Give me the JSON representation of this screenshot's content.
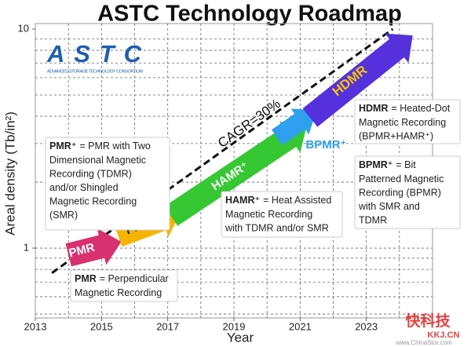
{
  "chart_data": {
    "type": "roadmap",
    "title": "ASTC Technology Roadmap",
    "logo": {
      "name": "ASTC",
      "subtitle": "ADVANCED STORAGE TECHNOLOGY CONSORTIUM"
    },
    "x_label": "Year",
    "y_label": "Areal density (Tb/in²)",
    "log_y": true,
    "xlim": [
      2013,
      2025
    ],
    "ylim": [
      0.48,
      10
    ],
    "xticks": [
      2013,
      2015,
      2017,
      2019,
      2021,
      2023
    ],
    "yticks": [
      1,
      10
    ],
    "x_grid": [
      2014,
      2015,
      2016,
      2017,
      2018,
      2019,
      2020,
      2021,
      2022,
      2023,
      2024
    ],
    "y_grid": [
      0.5,
      0.6,
      0.7,
      0.8,
      0.9,
      1,
      2,
      3,
      4,
      5,
      6,
      7,
      8,
      9
    ],
    "trend": {
      "label": "CAGR=30%",
      "x": [
        2013.5,
        2023.8
      ],
      "y": [
        0.77,
        10
      ]
    },
    "series": [
      {
        "name": "PMR",
        "color": "#d9306f",
        "label_color": "#ffffff",
        "x": [
          2014.0,
          2015.6
        ],
        "y": [
          0.93,
          1.07
        ]
      },
      {
        "name": "PMR⁺",
        "color": "#f6b400",
        "label_color": "#222222",
        "x": [
          2015.5,
          2017.4
        ],
        "y": [
          1.14,
          1.46
        ]
      },
      {
        "name": "HAMR⁺",
        "color": "#35c832",
        "label_color": "#ffffff",
        "x": [
          2017.1,
          2021.2
        ],
        "y": [
          1.4,
          3.62
        ]
      },
      {
        "name": "BPMR⁺",
        "color": "#2f9fef",
        "label_color": "#2f9fef",
        "x": [
          2020.3,
          2021.5
        ],
        "y": [
          3.2,
          4.27
        ]
      },
      {
        "name": "HDMR",
        "color": "#5431dc",
        "label_color": "#f6c400",
        "x": [
          2021.3,
          2024.4
        ],
        "y": [
          3.94,
          9.35
        ]
      }
    ],
    "annotations": [
      {
        "term": "PMR⁺",
        "lines": [
          "= PMR with Two",
          "Dimensional Magnetic",
          "Recording (TDMR)",
          "and/or Shingled",
          "Magnetic Recording",
          "(SMR)"
        ]
      },
      {
        "term": "PMR",
        "lines": [
          "= Perpendicular",
          "Magnetic Recording"
        ]
      },
      {
        "term": "HAMR⁺",
        "lines": [
          "= Heat Assisted",
          "Magnetic Recording",
          "with TDMR and/or SMR"
        ]
      },
      {
        "term": "HDMR",
        "lines": [
          "= Heated-Dot",
          "Magnetic Recording",
          "(BPMR+HAMR⁺)"
        ]
      },
      {
        "term": "BPMR⁺",
        "lines": [
          "= Bit",
          "Patterned Magnetic",
          "Recording (BPMR)",
          "with SMR and",
          "TDMR"
        ]
      }
    ],
    "watermark": [
      "快科技",
      "KKJ.CN",
      "www.ChinaStor.com"
    ]
  }
}
